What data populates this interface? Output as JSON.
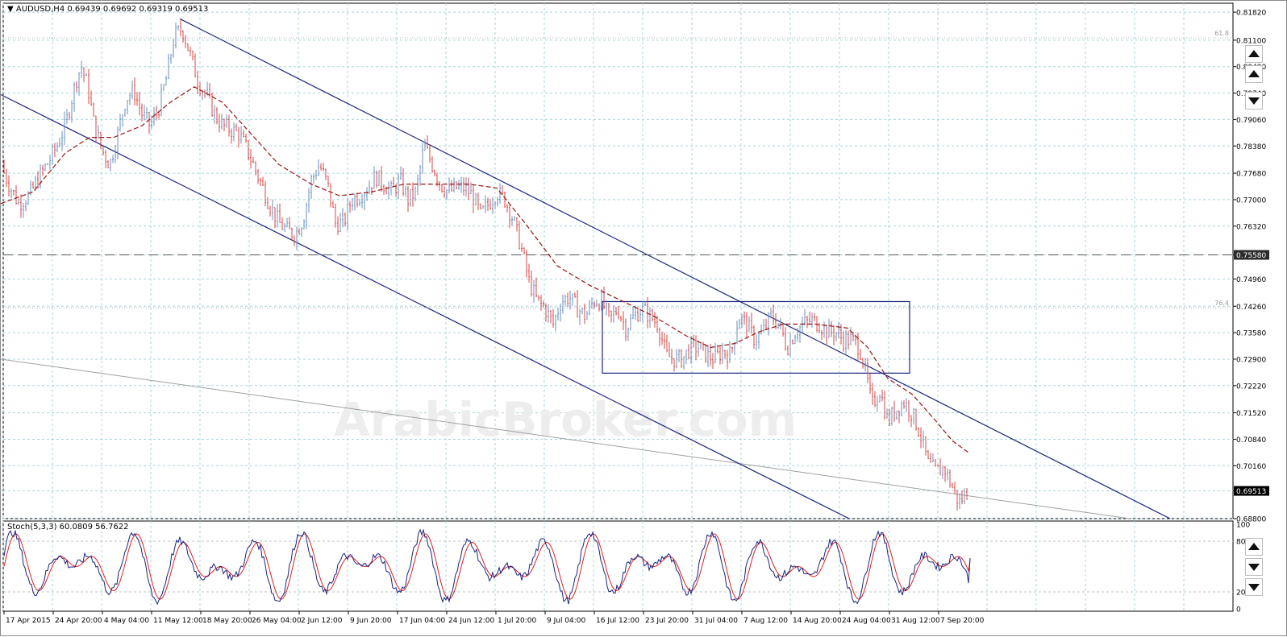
{
  "chart_header": {
    "symbol": "AUDUSD,H4",
    "open": "0.69439",
    "high": "0.69692",
    "low": "0.69319",
    "close": "0.69513"
  },
  "stoch_header": "Stoch(5,3,3) 60.0809 56.7622",
  "watermark": "ArabicBroker.com",
  "price_axis": [
    "0.81820",
    "0.81100",
    "0.80420",
    "0.79740",
    "0.79060",
    "0.78380",
    "0.77680",
    "0.77000",
    "0.76320",
    "0.75580",
    "0.74960",
    "0.74260",
    "0.73580",
    "0.72900",
    "0.72220",
    "0.71520",
    "0.70840",
    "0.70160",
    "0.69513",
    "0.68800"
  ],
  "current_price_label": "0.69513",
  "hline_label": "0.75580",
  "fib_labels": [
    "61.8",
    "76.4"
  ],
  "stoch_axis": [
    "100",
    "80",
    "20",
    "0"
  ],
  "time_axis": [
    "17 Apr 2015",
    "24 Apr 20:00",
    "4 May 04:00",
    "11 May 12:00",
    "18 May 20:00",
    "26 May 04:00",
    "2 Jun 12:00",
    "9 Jun 20:00",
    "17 Jun 04:00",
    "24 Jun 12:00",
    "1 Jul 20:00",
    "9 Jul 04:00",
    "16 Jul 12:00",
    "23 Jul 20:00",
    "31 Jul 04:00",
    "7 Aug 12:00",
    "14 Aug 20:00",
    "24 Aug 04:00",
    "31 Aug 12:00",
    "7 Sep 20:00"
  ],
  "colors": {
    "up_bar": "#6a8fbf",
    "down_bar": "#dd4444",
    "ma": "#9b1414",
    "channel": "#1a237e",
    "grid": "#a8d4dc",
    "stoch_main": "#1a237e",
    "stoch_signal": "#dd2020"
  },
  "chart_data": {
    "type": "ohlc",
    "symbol": "AUDUSD",
    "timeframe": "H4",
    "last_bar": {
      "open": 0.69439,
      "high": 0.69692,
      "low": 0.69319,
      "close": 0.69513
    },
    "ylim": [
      0.688,
      0.8205
    ],
    "price_path": [
      [
        0,
        0.779
      ],
      [
        10,
        0.774
      ],
      [
        22,
        0.769
      ],
      [
        35,
        0.771
      ],
      [
        48,
        0.776
      ],
      [
        60,
        0.78
      ],
      [
        70,
        0.784
      ],
      [
        80,
        0.789
      ],
      [
        88,
        0.796
      ],
      [
        95,
        0.802
      ],
      [
        100,
        0.804
      ],
      [
        108,
        0.799
      ],
      [
        115,
        0.79
      ],
      [
        125,
        0.783
      ],
      [
        135,
        0.779
      ],
      [
        145,
        0.787
      ],
      [
        155,
        0.796
      ],
      [
        165,
        0.798
      ],
      [
        175,
        0.792
      ],
      [
        185,
        0.789
      ],
      [
        195,
        0.793
      ],
      [
        205,
        0.801
      ],
      [
        215,
        0.812
      ],
      [
        225,
        0.814
      ],
      [
        235,
        0.807
      ],
      [
        245,
        0.8
      ],
      [
        255,
        0.797
      ],
      [
        265,
        0.792
      ],
      [
        275,
        0.789
      ],
      [
        285,
        0.788
      ],
      [
        295,
        0.787
      ],
      [
        305,
        0.783
      ],
      [
        315,
        0.778
      ],
      [
        325,
        0.773
      ],
      [
        335,
        0.768
      ],
      [
        345,
        0.764
      ],
      [
        355,
        0.762
      ],
      [
        365,
        0.761
      ],
      [
        375,
        0.765
      ],
      [
        385,
        0.775
      ],
      [
        395,
        0.779
      ],
      [
        405,
        0.774
      ],
      [
        415,
        0.764
      ],
      [
        425,
        0.764
      ],
      [
        435,
        0.77
      ],
      [
        445,
        0.771
      ],
      [
        455,
        0.773
      ],
      [
        465,
        0.776
      ],
      [
        475,
        0.774
      ],
      [
        485,
        0.772
      ],
      [
        495,
        0.775
      ],
      [
        505,
        0.77
      ],
      [
        515,
        0.772
      ],
      [
        525,
        0.784
      ],
      [
        535,
        0.779
      ],
      [
        545,
        0.774
      ],
      [
        555,
        0.772
      ],
      [
        565,
        0.773
      ],
      [
        575,
        0.773
      ],
      [
        585,
        0.771
      ],
      [
        595,
        0.766
      ],
      [
        605,
        0.769
      ],
      [
        615,
        0.772
      ],
      [
        625,
        0.77
      ],
      [
        635,
        0.765
      ],
      [
        645,
        0.758
      ],
      [
        655,
        0.749
      ],
      [
        665,
        0.744
      ],
      [
        675,
        0.742
      ],
      [
        685,
        0.738
      ],
      [
        695,
        0.744
      ],
      [
        705,
        0.745
      ],
      [
        715,
        0.742
      ],
      [
        725,
        0.74
      ],
      [
        735,
        0.744
      ],
      [
        745,
        0.744
      ],
      [
        755,
        0.739
      ],
      [
        765,
        0.742
      ],
      [
        775,
        0.737
      ],
      [
        785,
        0.74
      ],
      [
        795,
        0.742
      ],
      [
        805,
        0.74
      ],
      [
        815,
        0.738
      ],
      [
        825,
        0.73
      ],
      [
        835,
        0.729
      ],
      [
        845,
        0.729
      ],
      [
        855,
        0.732
      ],
      [
        865,
        0.732
      ],
      [
        875,
        0.73
      ],
      [
        885,
        0.729
      ],
      [
        895,
        0.731
      ],
      [
        905,
        0.73
      ],
      [
        915,
        0.74
      ],
      [
        925,
        0.738
      ],
      [
        935,
        0.734
      ],
      [
        945,
        0.736
      ],
      [
        955,
        0.74
      ],
      [
        965,
        0.738
      ],
      [
        975,
        0.732
      ],
      [
        985,
        0.736
      ],
      [
        995,
        0.738
      ],
      [
        1005,
        0.739
      ],
      [
        1015,
        0.738
      ],
      [
        1025,
        0.736
      ],
      [
        1035,
        0.736
      ],
      [
        1045,
        0.734
      ],
      [
        1055,
        0.734
      ],
      [
        1065,
        0.732
      ],
      [
        1075,
        0.723
      ],
      [
        1080,
        0.717
      ],
      [
        1090,
        0.721
      ],
      [
        1100,
        0.713
      ],
      [
        1110,
        0.716
      ],
      [
        1120,
        0.718
      ],
      [
        1130,
        0.715
      ],
      [
        1140,
        0.71
      ],
      [
        1150,
        0.702
      ],
      [
        1160,
        0.7
      ],
      [
        1170,
        0.701
      ],
      [
        1180,
        0.696
      ],
      [
        1188,
        0.692
      ],
      [
        1195,
        0.694
      ],
      [
        1200,
        0.6951
      ]
    ],
    "ma_path": [
      [
        0,
        0.769
      ],
      [
        40,
        0.772
      ],
      [
        80,
        0.782
      ],
      [
        110,
        0.786
      ],
      [
        140,
        0.786
      ],
      [
        175,
        0.789
      ],
      [
        210,
        0.795
      ],
      [
        240,
        0.799
      ],
      [
        275,
        0.795
      ],
      [
        310,
        0.787
      ],
      [
        345,
        0.779
      ],
      [
        385,
        0.774
      ],
      [
        420,
        0.771
      ],
      [
        460,
        0.772
      ],
      [
        500,
        0.774
      ],
      [
        540,
        0.774
      ],
      [
        580,
        0.774
      ],
      [
        615,
        0.773
      ],
      [
        650,
        0.764
      ],
      [
        690,
        0.753
      ],
      [
        730,
        0.748
      ],
      [
        770,
        0.744
      ],
      [
        810,
        0.74
      ],
      [
        850,
        0.735
      ],
      [
        880,
        0.732
      ],
      [
        910,
        0.733
      ],
      [
        940,
        0.736
      ],
      [
        970,
        0.738
      ],
      [
        1010,
        0.738
      ],
      [
        1050,
        0.737
      ],
      [
        1075,
        0.732
      ],
      [
        1100,
        0.724
      ],
      [
        1130,
        0.72
      ],
      [
        1160,
        0.713
      ],
      [
        1180,
        0.708
      ],
      [
        1200,
        0.705
      ]
    ],
    "channel_upper": [
      [
        222,
        0.8165
      ],
      [
        1450,
        0.688
      ]
    ],
    "channel_lower": [
      [
        0,
        0.797
      ],
      [
        1052,
        0.688
      ]
    ],
    "long_trendline": [
      [
        0,
        0.729
      ],
      [
        1400,
        0.688
      ]
    ],
    "horizontal_line": 0.7558,
    "fib_levels": [
      {
        "label": "61.8",
        "value": 0.8116
      },
      {
        "label": "76.4",
        "value": 0.7422
      }
    ],
    "range_box": {
      "x1": 746,
      "x2": 1127,
      "top": 0.7438,
      "bottom": 0.7254
    },
    "stochastic": {
      "k": 60.0809,
      "d": 56.7622,
      "levels": [
        80,
        20
      ],
      "range": [
        0,
        100
      ]
    }
  }
}
